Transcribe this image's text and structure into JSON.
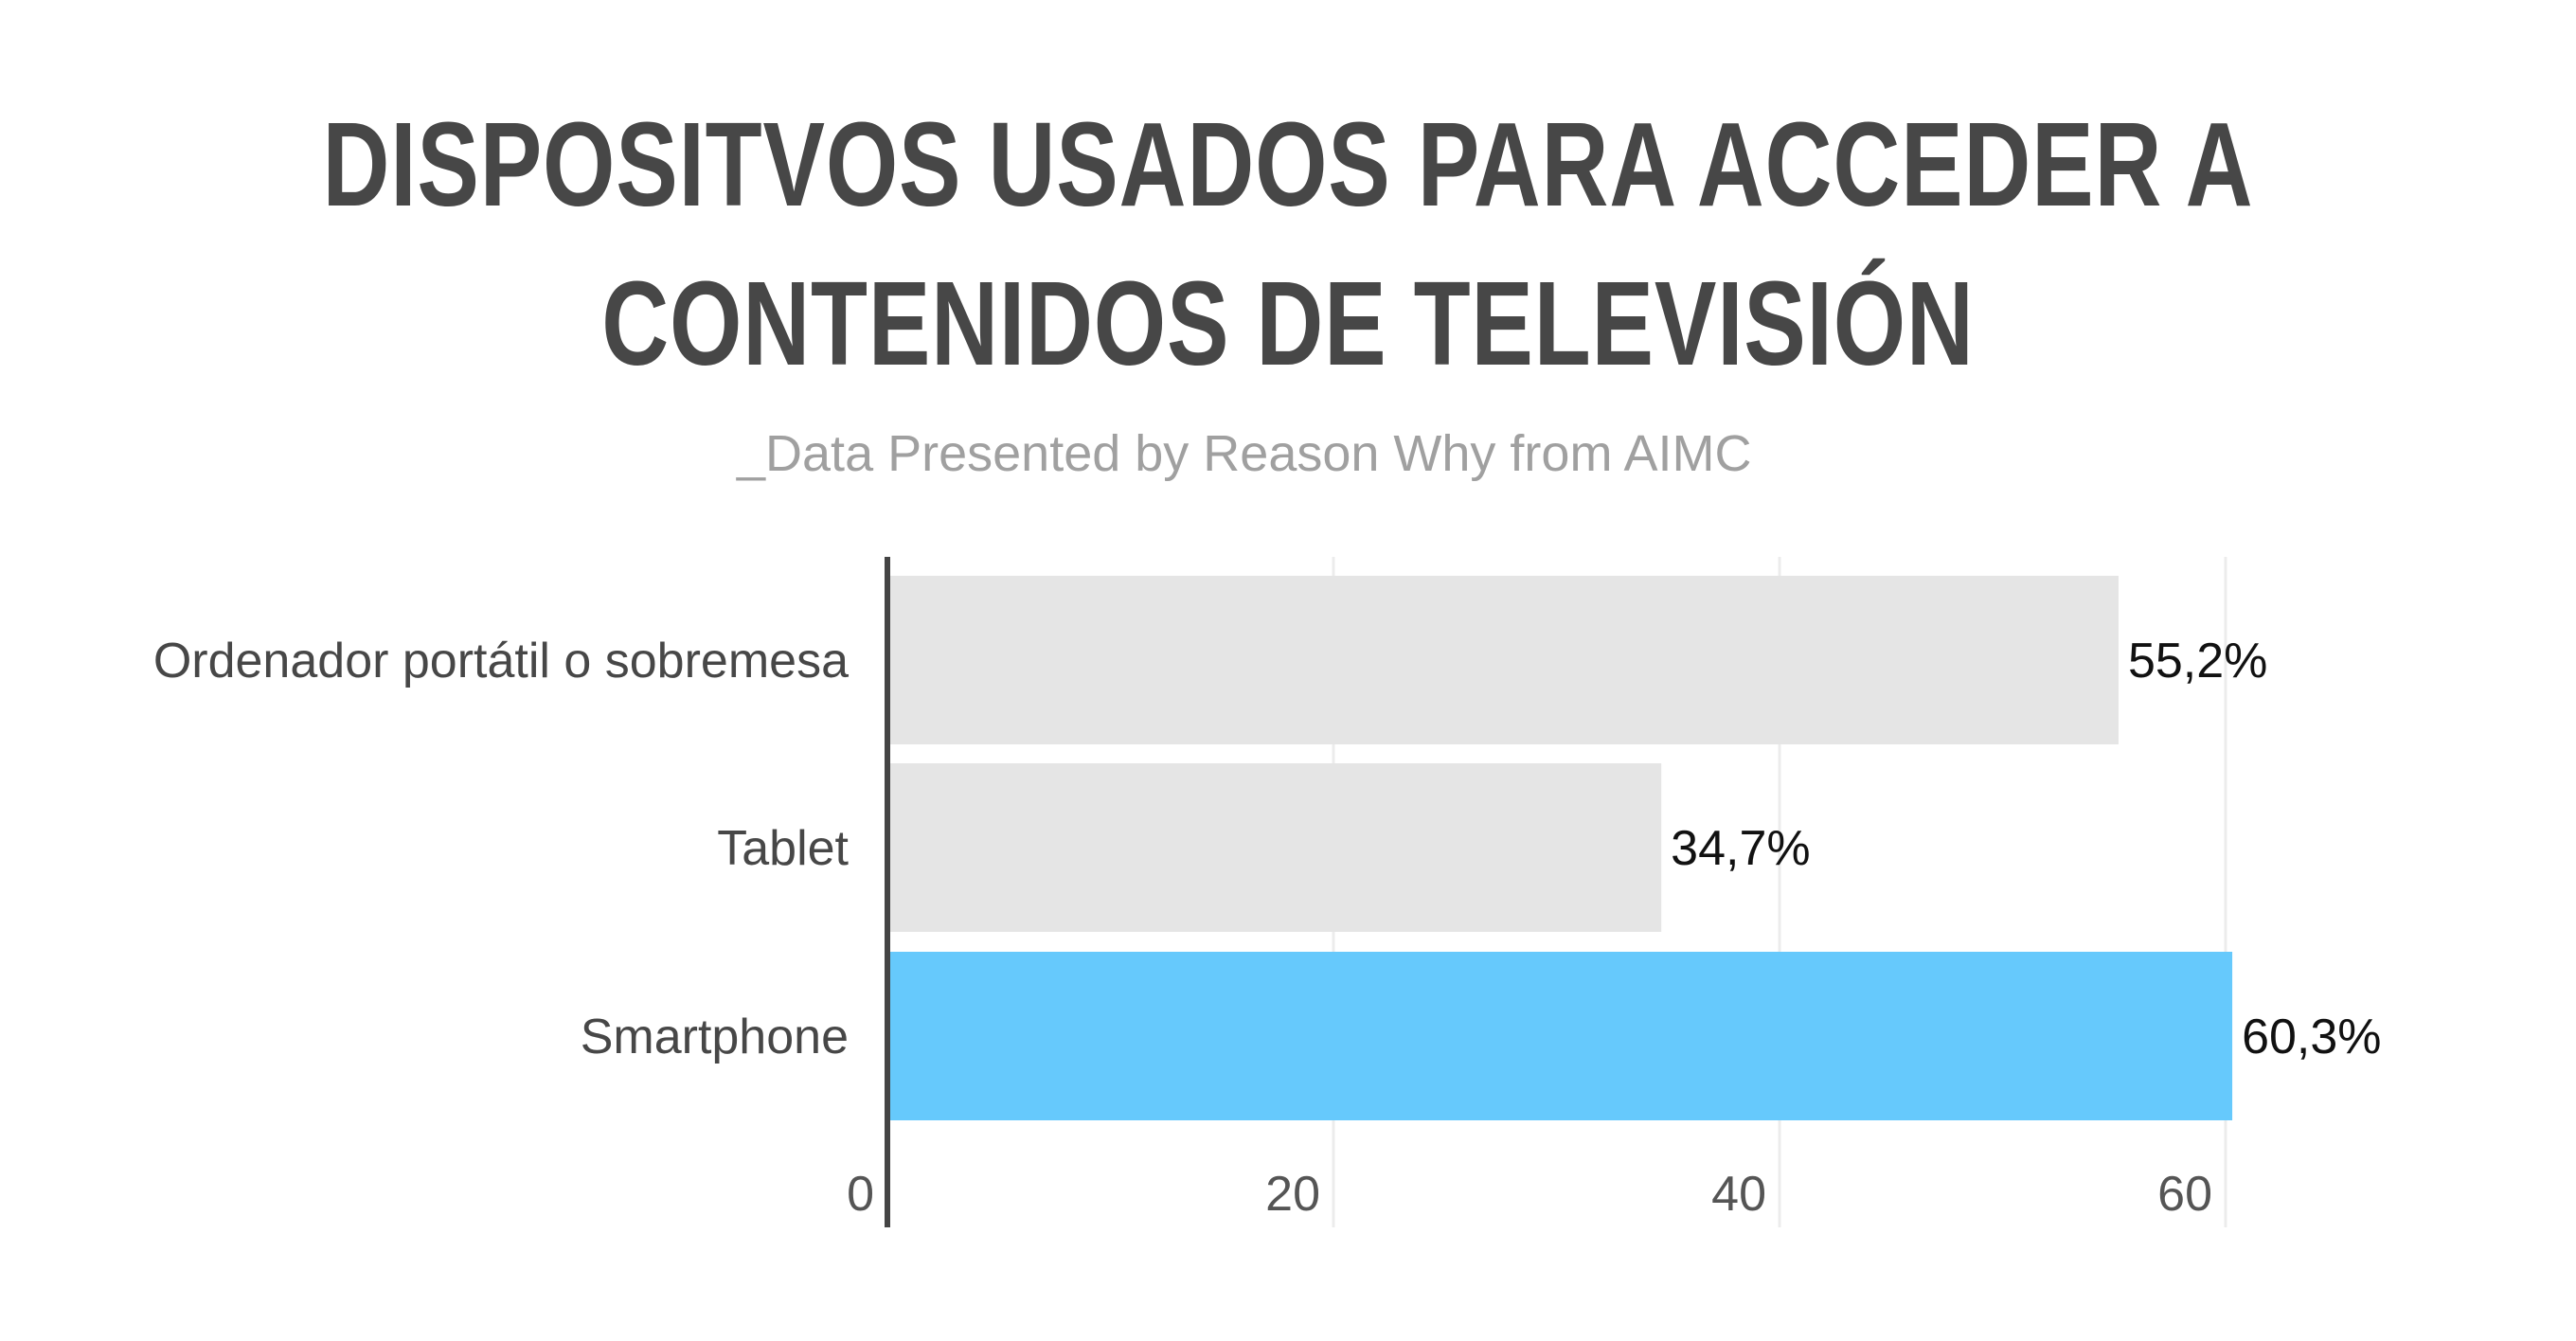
{
  "header": {
    "title_line_1": "DISPOSITVOS USADOS PARA ACCEDER A",
    "title_line_2": "CONTENIDOS DE TELEVISIÓN",
    "subtitle": "_Data Presented by Reason Why from AIMC"
  },
  "colors": {
    "bar_default": "#e5e5e5",
    "bar_highlight": "#66c9fc",
    "axis": "#444444",
    "grid": "#ececec",
    "title": "#474747"
  },
  "chart_data": {
    "type": "bar",
    "orientation": "horizontal",
    "categories": [
      "Ordenador portátil o sobremesa",
      "Tablet",
      "Smartphone"
    ],
    "values": [
      55.2,
      34.7,
      60.3
    ],
    "value_labels": [
      "55,2%",
      "34,7%",
      "60,3%"
    ],
    "highlight_index": 2,
    "xlim": [
      0,
      60
    ],
    "xticks": [
      0,
      20,
      40,
      60
    ],
    "xtick_labels": [
      "0",
      "20",
      "40",
      "60"
    ],
    "title": "DISPOSITVOS USADOS PARA ACCEDER A CONTENIDOS DE TELEVISIÓN",
    "subtitle": "_Data Presented by Reason Why from AIMC",
    "xlabel": "",
    "ylabel": "",
    "grid": true,
    "legend": "none"
  }
}
